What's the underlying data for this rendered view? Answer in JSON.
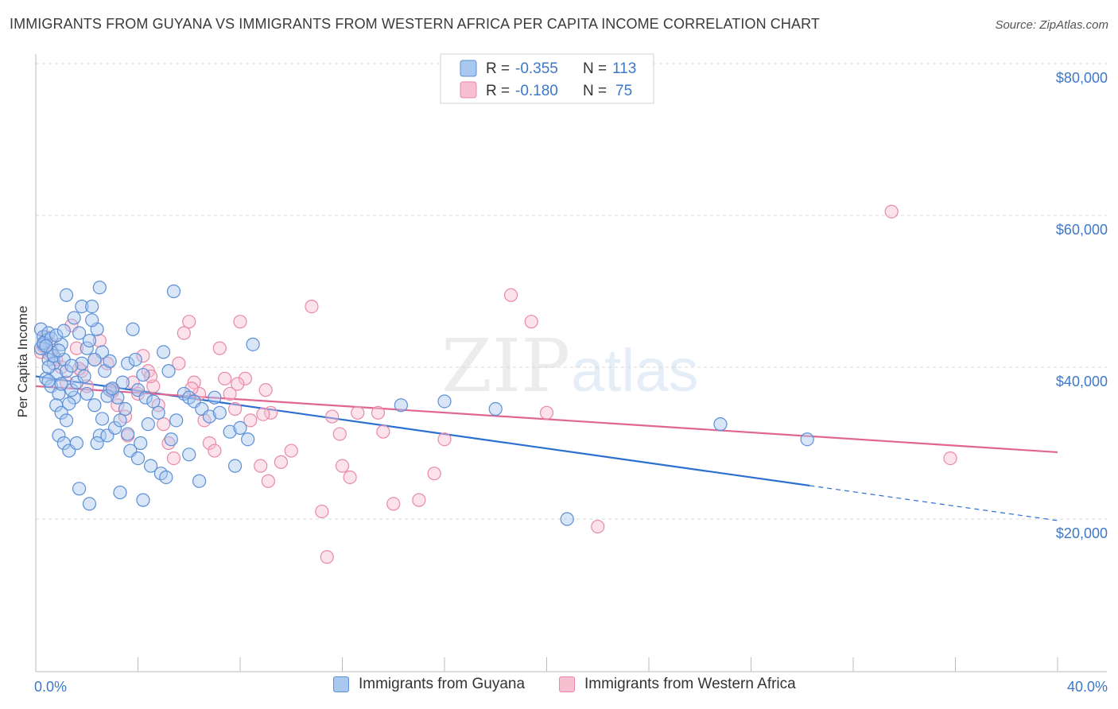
{
  "title": "IMMIGRANTS FROM GUYANA VS IMMIGRANTS FROM WESTERN AFRICA PER CAPITA INCOME CORRELATION CHART",
  "source": "Source: ZipAtlas.com",
  "watermark": {
    "zip": "ZIP",
    "atlas": "atlas"
  },
  "colors": {
    "blue_fill": "#a9c8f0",
    "blue_stroke": "#5b8fd6",
    "blue_line": "#2b6fd0",
    "pink_fill": "#f8bfd0",
    "pink_stroke": "#e889a8",
    "pink_line": "#e06690",
    "label": "#3d78c7",
    "grid": "#d8d8d8"
  },
  "legend": {
    "rows": [
      {
        "r_label": "R = ",
        "r_value": "-0.355",
        "n_label": "N = ",
        "n_value": "113"
      },
      {
        "r_label": "R = ",
        "r_value": "-0.180",
        "n_label": "N = ",
        "n_value": "75"
      }
    ]
  },
  "bottom_legend": [
    "Immigrants from Guyana",
    "Immigrants from Western Africa"
  ],
  "chart_data": {
    "type": "scatter",
    "title": "IMMIGRANTS FROM GUYANA VS IMMIGRANTS FROM WESTERN AFRICA PER CAPITA INCOME CORRELATION CHART",
    "xlabel": "",
    "ylabel": "Per Capita Income",
    "xlim": [
      0,
      40
    ],
    "ylim": [
      0,
      82000
    ],
    "x_tick_labels": [
      "0.0%",
      "40.0%"
    ],
    "y_ticks": [
      20000,
      40000,
      60000,
      80000
    ],
    "y_tick_labels": [
      "$20,000",
      "$40,000",
      "$60,000",
      "$80,000"
    ],
    "grid": "horizontal dashed",
    "legend_position": "top-center",
    "series": [
      {
        "name": "Immigrants from Guyana",
        "r": -0.355,
        "n": 113,
        "trend": {
          "x0": 0,
          "y0": 38800,
          "x1": 30.3,
          "y1": 24400,
          "dashed_to_x": 40,
          "dashed_to_y": 19800
        },
        "points": [
          [
            0.2,
            45000
          ],
          [
            0.3,
            44000
          ],
          [
            0.4,
            43500
          ],
          [
            0.5,
            44500
          ],
          [
            0.6,
            42000
          ],
          [
            0.3,
            43000
          ],
          [
            0.2,
            42500
          ],
          [
            0.5,
            41000
          ],
          [
            0.7,
            40500
          ],
          [
            0.8,
            39000
          ],
          [
            0.4,
            38500
          ],
          [
            0.6,
            37500
          ],
          [
            0.9,
            36500
          ],
          [
            0.5,
            40000
          ],
          [
            0.7,
            41500
          ],
          [
            1.0,
            43000
          ],
          [
            1.1,
            41000
          ],
          [
            1.2,
            39500
          ],
          [
            0.8,
            35000
          ],
          [
            1.0,
            34000
          ],
          [
            1.2,
            33000
          ],
          [
            0.9,
            31000
          ],
          [
            1.1,
            30000
          ],
          [
            1.3,
            29000
          ],
          [
            1.5,
            36000
          ],
          [
            1.4,
            37000
          ],
          [
            1.6,
            38000
          ],
          [
            1.8,
            40500
          ],
          [
            2.0,
            42500
          ],
          [
            2.1,
            43500
          ],
          [
            1.7,
            44500
          ],
          [
            1.5,
            46500
          ],
          [
            1.8,
            48000
          ],
          [
            2.2,
            48000
          ],
          [
            1.2,
            49500
          ],
          [
            2.5,
            50500
          ],
          [
            2.4,
            45000
          ],
          [
            2.6,
            42000
          ],
          [
            2.3,
            41000
          ],
          [
            2.7,
            39500
          ],
          [
            2.0,
            36500
          ],
          [
            2.3,
            35000
          ],
          [
            2.5,
            31000
          ],
          [
            2.4,
            30000
          ],
          [
            2.8,
            31000
          ],
          [
            3.1,
            32000
          ],
          [
            3.3,
            33000
          ],
          [
            3.5,
            34500
          ],
          [
            3.2,
            36000
          ],
          [
            2.9,
            37000
          ],
          [
            3.4,
            38000
          ],
          [
            3.6,
            40500
          ],
          [
            3.8,
            45000
          ],
          [
            3.9,
            41000
          ],
          [
            4.2,
            39000
          ],
          [
            4.0,
            37000
          ],
          [
            4.3,
            36000
          ],
          [
            4.6,
            35500
          ],
          [
            4.8,
            34000
          ],
          [
            4.4,
            32500
          ],
          [
            4.1,
            30000
          ],
          [
            3.7,
            29000
          ],
          [
            4.0,
            28000
          ],
          [
            4.5,
            27000
          ],
          [
            4.9,
            26000
          ],
          [
            5.1,
            25500
          ],
          [
            5.3,
            30500
          ],
          [
            5.5,
            33000
          ],
          [
            5.8,
            36500
          ],
          [
            5.2,
            39500
          ],
          [
            5.0,
            42000
          ],
          [
            5.4,
            50000
          ],
          [
            6.0,
            36000
          ],
          [
            6.2,
            35500
          ],
          [
            6.5,
            34500
          ],
          [
            6.8,
            33500
          ],
          [
            7.0,
            36000
          ],
          [
            7.2,
            34000
          ],
          [
            7.6,
            31500
          ],
          [
            8.0,
            32000
          ],
          [
            8.3,
            30500
          ],
          [
            7.8,
            27000
          ],
          [
            8.5,
            43000
          ],
          [
            6.4,
            25000
          ],
          [
            6.0,
            28500
          ],
          [
            4.2,
            22500
          ],
          [
            3.3,
            23500
          ],
          [
            2.1,
            22000
          ],
          [
            1.7,
            24000
          ],
          [
            1.6,
            30000
          ],
          [
            14.3,
            35000
          ],
          [
            16.0,
            35500
          ],
          [
            18.0,
            34500
          ],
          [
            20.8,
            20000
          ],
          [
            26.8,
            32500
          ],
          [
            30.2,
            30500
          ],
          [
            0.3,
            43200
          ],
          [
            0.6,
            43800
          ],
          [
            0.4,
            42800
          ],
          [
            0.8,
            44200
          ],
          [
            1.4,
            40200
          ],
          [
            1.9,
            38800
          ],
          [
            2.8,
            36200
          ],
          [
            3.0,
            37200
          ],
          [
            0.5,
            38200
          ],
          [
            1.3,
            35200
          ],
          [
            2.6,
            33200
          ],
          [
            3.6,
            31200
          ],
          [
            0.9,
            42200
          ],
          [
            1.1,
            44800
          ],
          [
            2.2,
            46200
          ],
          [
            1.0,
            37800
          ],
          [
            2.9,
            40800
          ]
        ]
      },
      {
        "name": "Immigrants from Western Africa",
        "r": -0.18,
        "n": 75,
        "trend": {
          "x0": 0,
          "y0": 37500,
          "x1": 40,
          "y1": 28800
        },
        "points": [
          [
            0.2,
            42000
          ],
          [
            0.4,
            44000
          ],
          [
            0.6,
            43000
          ],
          [
            0.8,
            41000
          ],
          [
            1.0,
            40000
          ],
          [
            1.2,
            38000
          ],
          [
            1.4,
            45500
          ],
          [
            1.6,
            42500
          ],
          [
            1.8,
            39500
          ],
          [
            2.0,
            37500
          ],
          [
            2.3,
            41000
          ],
          [
            2.5,
            43500
          ],
          [
            2.8,
            40500
          ],
          [
            3.0,
            37000
          ],
          [
            3.2,
            35000
          ],
          [
            3.5,
            33500
          ],
          [
            3.8,
            38000
          ],
          [
            4.0,
            36500
          ],
          [
            4.2,
            41500
          ],
          [
            4.4,
            39500
          ],
          [
            4.6,
            37500
          ],
          [
            4.8,
            35000
          ],
          [
            5.0,
            32500
          ],
          [
            5.2,
            30000
          ],
          [
            5.4,
            28000
          ],
          [
            5.6,
            40500
          ],
          [
            5.8,
            44500
          ],
          [
            6.0,
            46000
          ],
          [
            6.2,
            38000
          ],
          [
            6.4,
            36500
          ],
          [
            6.6,
            33000
          ],
          [
            6.8,
            30000
          ],
          [
            7.0,
            29000
          ],
          [
            7.2,
            42500
          ],
          [
            7.4,
            38500
          ],
          [
            7.6,
            36500
          ],
          [
            7.8,
            34500
          ],
          [
            8.0,
            46000
          ],
          [
            8.2,
            38500
          ],
          [
            8.4,
            33000
          ],
          [
            8.8,
            27000
          ],
          [
            9.0,
            37000
          ],
          [
            9.2,
            34000
          ],
          [
            9.6,
            27500
          ],
          [
            10.0,
            29000
          ],
          [
            10.8,
            48000
          ],
          [
            11.2,
            21000
          ],
          [
            11.4,
            15000
          ],
          [
            11.6,
            33500
          ],
          [
            12.0,
            27000
          ],
          [
            12.3,
            25500
          ],
          [
            12.6,
            34000
          ],
          [
            13.4,
            34000
          ],
          [
            13.6,
            31500
          ],
          [
            14.0,
            22000
          ],
          [
            15.0,
            22500
          ],
          [
            15.6,
            26000
          ],
          [
            16.0,
            30500
          ],
          [
            18.6,
            49500
          ],
          [
            19.4,
            46000
          ],
          [
            20.0,
            34000
          ],
          [
            22.0,
            19000
          ],
          [
            33.5,
            60500
          ],
          [
            35.8,
            28000
          ],
          [
            0.3,
            42800
          ],
          [
            0.5,
            41800
          ],
          [
            1.7,
            39800
          ],
          [
            3.0,
            36800
          ],
          [
            4.5,
            38800
          ],
          [
            6.1,
            37200
          ],
          [
            9.1,
            25000
          ],
          [
            11.9,
            31200
          ],
          [
            7.9,
            37800
          ],
          [
            8.9,
            33800
          ],
          [
            3.6,
            31000
          ]
        ]
      }
    ]
  }
}
